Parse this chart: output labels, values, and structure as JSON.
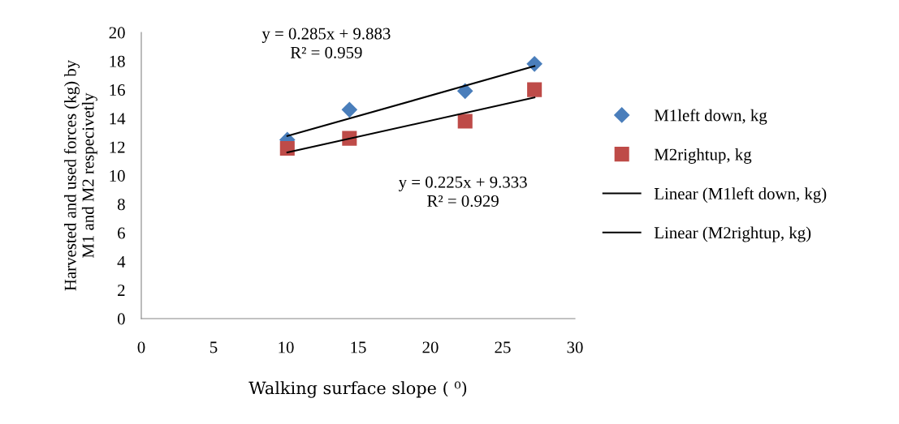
{
  "chart_data": {
    "type": "scatter",
    "xlabel": "Walking surface slope ( ⁰)",
    "ylabel": "Harvested and used forces (kg) by\nM1 and M2 respecivetly",
    "xlim": [
      0,
      30
    ],
    "xticks": [
      0,
      5,
      10,
      15,
      20,
      25,
      30
    ],
    "ylim": [
      0,
      20
    ],
    "yticks": [
      0,
      2,
      4,
      6,
      8,
      10,
      12,
      14,
      16,
      18,
      20
    ],
    "grid": false,
    "legend": "right",
    "series": [
      {
        "name": "M1left down, kg",
        "color": "#4a7ebb",
        "marker": "diamond",
        "x": [
          10.1,
          14.4,
          22.4,
          27.2
        ],
        "values": [
          12.5,
          14.6,
          15.9,
          17.8
        ]
      },
      {
        "name": "M2rightup, kg",
        "color": "#be4b48",
        "marker": "square",
        "x": [
          10.1,
          14.4,
          22.4,
          27.2
        ],
        "values": [
          11.9,
          12.6,
          13.8,
          16.0
        ]
      },
      {
        "name": "Linear (M1left down, kg)",
        "color": "#000000",
        "type": "line",
        "marker": "none",
        "line_style": "solid",
        "x": [
          10.1,
          27.2
        ],
        "values": [
          12.76,
          17.64
        ]
      },
      {
        "name": "Linear (M2rightup, kg)",
        "color": "#000000",
        "type": "line",
        "marker": "none",
        "line_style": "solid",
        "x": [
          10.1,
          27.2
        ],
        "values": [
          11.61,
          15.45
        ]
      }
    ],
    "annotations": [
      "y = 0.285x + 9.883\nR² = 0.959",
      "y = 0.225x + 9.333\nR² = 0.929"
    ]
  }
}
